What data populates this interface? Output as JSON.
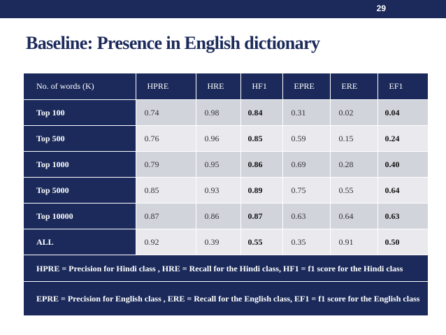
{
  "slide": {
    "page_number": "29",
    "title": "Baseline: Presence in English dictionary"
  },
  "table": {
    "headers": [
      "No. of words (K)",
      "HPRE",
      "HRE",
      "HF1",
      "EPRE",
      "ERE",
      "EF1"
    ],
    "rows": [
      {
        "label": "Top 100",
        "values": [
          "0.74",
          "0.98",
          "0.84",
          "0.31",
          "0.02",
          "0.04"
        ]
      },
      {
        "label": "Top 500",
        "values": [
          "0.76",
          "0.96",
          "0.85",
          "0.59",
          "0.15",
          "0.24"
        ]
      },
      {
        "label": "Top 1000",
        "values": [
          "0.79",
          "0.95",
          "0.86",
          "0.69",
          "0.28",
          "0.40"
        ]
      },
      {
        "label": "Top 5000",
        "values": [
          "0.85",
          "0.93",
          "0.89",
          "0.75",
          "0.55",
          "0.64"
        ]
      },
      {
        "label": "Top 10000",
        "values": [
          "0.87",
          "0.86",
          "0.87",
          "0.63",
          "0.64",
          "0.63"
        ]
      },
      {
        "label": "ALL",
        "values": [
          "0.92",
          "0.39",
          "0.55",
          "0.35",
          "0.91",
          "0.50"
        ]
      }
    ],
    "notes": [
      "HPRE = Precision for Hindi class , HRE = Recall for the Hindi class, HF1 = f1 score for the Hindi class",
      "EPRE = Precision for English class , ERE = Recall for the English class, EF1 = f1 score for the English class"
    ]
  },
  "colors": {
    "header_bg": "#1b2a5a",
    "row_light": "#e9e9ee",
    "row_dark": "#d2d4dc",
    "title": "#1b2a5a"
  }
}
